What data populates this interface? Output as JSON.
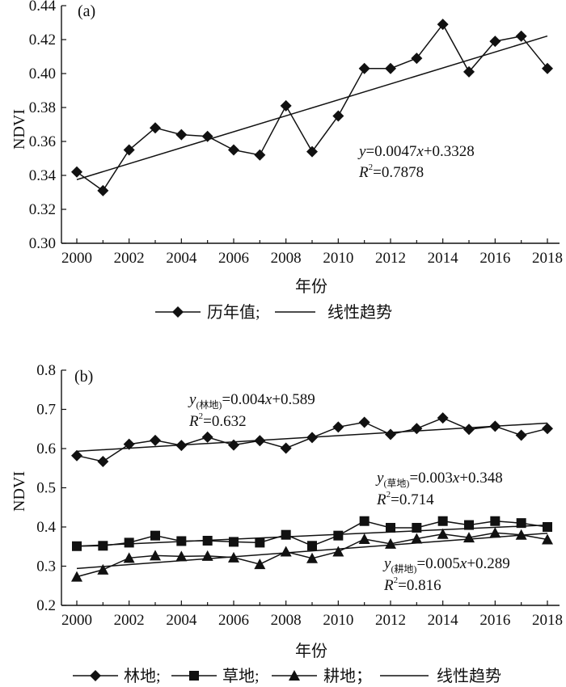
{
  "chart_data": [
    {
      "type": "line",
      "panel_label": "(a)",
      "xlabel": "年份",
      "ylabel": "NDVI",
      "xlim": [
        2000,
        2018
      ],
      "ylim": [
        0.3,
        0.44
      ],
      "xticks": [
        "2000",
        "2002",
        "2004",
        "2006",
        "2008",
        "2010",
        "2012",
        "2014",
        "2016",
        "2018"
      ],
      "yticks": [
        "0.30",
        "0.32",
        "0.34",
        "0.36",
        "0.38",
        "0.40",
        "0.42",
        "0.44"
      ],
      "x": [
        2000,
        2001,
        2002,
        2003,
        2004,
        2005,
        2006,
        2007,
        2008,
        2009,
        2010,
        2011,
        2012,
        2013,
        2014,
        2015,
        2016,
        2017,
        2018
      ],
      "series": [
        {
          "name": "历年值;",
          "marker": "diamond",
          "values": [
            0.342,
            0.331,
            0.355,
            0.368,
            0.364,
            0.363,
            0.355,
            0.352,
            0.381,
            0.354,
            0.375,
            0.403,
            0.403,
            0.409,
            0.429,
            0.401,
            0.419,
            0.422,
            0.403
          ]
        }
      ],
      "trend": {
        "name": "线性趋势",
        "slope": 0.0047,
        "intercept": 0.3328
      },
      "equation": {
        "y": "y",
        "rest": "=0.0047",
        "x": "x",
        "tail": "+0.3328",
        "r2_prefix": "R",
        "r2_sup": "2",
        "r2_value": "=0.7878"
      },
      "legend": [
        "历年值;",
        "线性趋势"
      ]
    },
    {
      "type": "line",
      "panel_label": "(b)",
      "xlabel": "年份",
      "ylabel": "NDVI",
      "xlim": [
        2000,
        2018
      ],
      "ylim": [
        0.2,
        0.8
      ],
      "xticks": [
        "2000",
        "2002",
        "2004",
        "2006",
        "2008",
        "2010",
        "2012",
        "2014",
        "2016",
        "2018"
      ],
      "yticks": [
        "0.2",
        "0.3",
        "0.4",
        "0.5",
        "0.6",
        "0.7",
        "0.8"
      ],
      "x": [
        2000,
        2001,
        2002,
        2003,
        2004,
        2005,
        2006,
        2007,
        2008,
        2009,
        2010,
        2011,
        2012,
        2013,
        2014,
        2015,
        2016,
        2017,
        2018
      ],
      "series": [
        {
          "name": "林地;",
          "marker": "diamond",
          "values": [
            0.582,
            0.567,
            0.611,
            0.621,
            0.608,
            0.629,
            0.609,
            0.62,
            0.601,
            0.628,
            0.655,
            0.667,
            0.636,
            0.651,
            0.678,
            0.649,
            0.657,
            0.634,
            0.651
          ],
          "trend": {
            "slope": 0.004,
            "intercept": 0.589
          },
          "equation": {
            "y": "y",
            "sub": "(林地)",
            "rest": "=0.004",
            "x": "x",
            "tail": "+0.589",
            "r2_prefix": "R",
            "r2_sup": "2",
            "r2_value": "=0.632"
          }
        },
        {
          "name": "草地;",
          "marker": "square",
          "values": [
            0.351,
            0.352,
            0.36,
            0.378,
            0.364,
            0.365,
            0.362,
            0.36,
            0.38,
            0.352,
            0.378,
            0.415,
            0.398,
            0.398,
            0.415,
            0.405,
            0.415,
            0.41,
            0.4
          ],
          "trend": {
            "slope": 0.003,
            "intercept": 0.348
          },
          "equation": {
            "y": "y",
            "sub": "(草地)",
            "rest": "=0.003",
            "x": "x",
            "tail": "+0.348",
            "r2_prefix": "R",
            "r2_sup": "2",
            "r2_value": "=0.714"
          }
        },
        {
          "name": "耕地；",
          "marker": "triangle",
          "values": [
            0.273,
            0.291,
            0.321,
            0.327,
            0.325,
            0.326,
            0.322,
            0.305,
            0.337,
            0.32,
            0.337,
            0.369,
            0.357,
            0.37,
            0.382,
            0.373,
            0.385,
            0.38,
            0.368
          ],
          "trend": {
            "slope": 0.005,
            "intercept": 0.289
          },
          "equation": {
            "y": "y",
            "sub": "(耕地)",
            "rest": "=0.005",
            "x": "x",
            "tail": "+0.289",
            "r2_prefix": "R",
            "r2_sup": "2",
            "r2_value": "=0.816"
          }
        }
      ],
      "legend": [
        "林地;",
        "草地;",
        "耕地；",
        "线性趋势"
      ]
    }
  ]
}
